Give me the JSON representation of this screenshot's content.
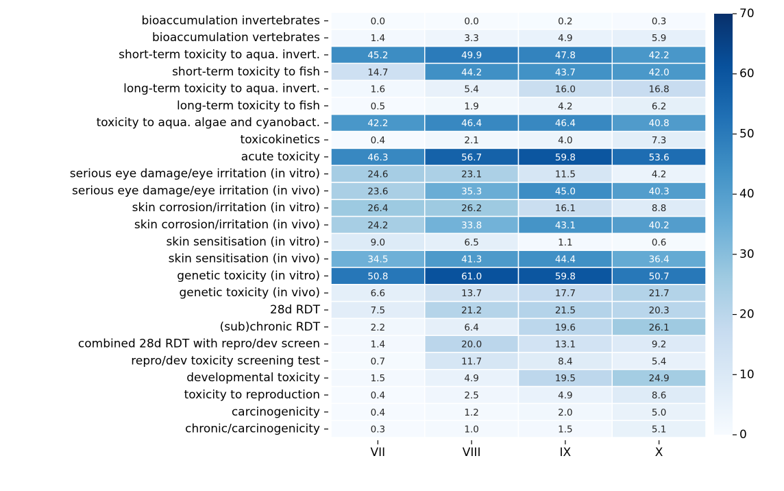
{
  "chart_data": {
    "type": "heatmap",
    "x_categories": [
      "VII",
      "VIII",
      "IX",
      "X"
    ],
    "y_categories": [
      "bioaccumulation invertebrates",
      "bioaccumulation vertebrates",
      "short-term toxicity to aqua. invert.",
      "short-term toxicity to fish",
      "long-term toxicity to aqua. invert.",
      "long-term toxicity to fish",
      "toxicity to aqua. algae and cyanobact.",
      "toxicokinetics",
      "acute toxicity",
      "serious eye damage/eye irritation (in vitro)",
      "serious eye damage/eye irritation (in vivo)",
      "skin corrosion/irritation (in vitro)",
      "skin corrosion/irritation (in vivo)",
      "skin sensitisation (in vitro)",
      "skin sensitisation (in vivo)",
      "genetic toxicity (in vitro)",
      "genetic toxicity (in vivo)",
      "28d RDT",
      "(sub)chronic RDT",
      "combined 28d RDT with repro/dev screen",
      "repro/dev toxicity screening test",
      "developmental toxicity",
      "toxicity to reproduction",
      "carcinogenicity",
      "chronic/carcinogenicity"
    ],
    "values": [
      [
        0,
        0,
        0.2,
        0.3
      ],
      [
        1.4,
        3.3,
        4.9,
        5.9
      ],
      [
        45.2,
        49.9,
        47.8,
        42.2
      ],
      [
        14.7,
        44.2,
        43.7,
        42
      ],
      [
        1.6,
        5.4,
        16,
        16.8
      ],
      [
        0.5,
        1.9,
        4.2,
        6.2
      ],
      [
        42.2,
        46.4,
        46.4,
        40.8
      ],
      [
        0.4,
        2.1,
        4,
        7.3
      ],
      [
        46.3,
        56.7,
        59.8,
        53.6
      ],
      [
        24.6,
        23.1,
        11.5,
        4.2
      ],
      [
        23.6,
        35.3,
        45,
        40.3
      ],
      [
        26.4,
        26.2,
        16.1,
        8.8
      ],
      [
        24.2,
        33.8,
        43.1,
        40.2
      ],
      [
        9,
        6.5,
        1.1,
        0.6
      ],
      [
        34.5,
        41.3,
        44.4,
        36.4
      ],
      [
        50.8,
        61,
        59.8,
        50.7
      ],
      [
        6.6,
        13.7,
        17.7,
        21.7
      ],
      [
        7.5,
        21.2,
        21.5,
        20.3
      ],
      [
        2.2,
        6.4,
        19.6,
        26.1
      ],
      [
        1.4,
        20,
        13.1,
        9.2
      ],
      [
        0.7,
        11.7,
        8.4,
        5.4
      ],
      [
        1.5,
        4.9,
        19.5,
        24.9
      ],
      [
        0.4,
        2.5,
        4.9,
        8.6
      ],
      [
        0.4,
        1.2,
        2,
        5
      ],
      [
        0.3,
        1,
        1.5,
        5.1
      ]
    ],
    "value_labels": [
      [
        "0.0",
        "0.0",
        "0.2",
        "0.3"
      ],
      [
        "1.4",
        "3.3",
        "4.9",
        "5.9"
      ],
      [
        "45.2",
        "49.9",
        "47.8",
        "42.2"
      ],
      [
        "14.7",
        "44.2",
        "43.7",
        "42.0"
      ],
      [
        "1.6",
        "5.4",
        "16.0",
        "16.8"
      ],
      [
        "0.5",
        "1.9",
        "4.2",
        "6.2"
      ],
      [
        "42.2",
        "46.4",
        "46.4",
        "40.8"
      ],
      [
        "0.4",
        "2.1",
        "4.0",
        "7.3"
      ],
      [
        "46.3",
        "56.7",
        "59.8",
        "53.6"
      ],
      [
        "24.6",
        "23.1",
        "11.5",
        "4.2"
      ],
      [
        "23.6",
        "35.3",
        "45.0",
        "40.3"
      ],
      [
        "26.4",
        "26.2",
        "16.1",
        "8.8"
      ],
      [
        "24.2",
        "33.8",
        "43.1",
        "40.2"
      ],
      [
        "9.0",
        "6.5",
        "1.1",
        "0.6"
      ],
      [
        "34.5",
        "41.3",
        "44.4",
        "36.4"
      ],
      [
        "50.8",
        "61.0",
        "59.8",
        "50.7"
      ],
      [
        "6.6",
        "13.7",
        "17.7",
        "21.7"
      ],
      [
        "7.5",
        "21.2",
        "21.5",
        "20.3"
      ],
      [
        "2.2",
        "6.4",
        "19.6",
        "26.1"
      ],
      [
        "1.4",
        "20.0",
        "13.1",
        "9.2"
      ],
      [
        "0.7",
        "11.7",
        "8.4",
        "5.4"
      ],
      [
        "1.5",
        "4.9",
        "19.5",
        "24.9"
      ],
      [
        "0.4",
        "2.5",
        "4.9",
        "8.6"
      ],
      [
        "0.4",
        "1.2",
        "2.0",
        "5.0"
      ],
      [
        "0.3",
        "1.0",
        "1.5",
        "5.1"
      ]
    ],
    "colorbar": {
      "lim": [
        0,
        70
      ],
      "ticks": [
        0,
        10,
        20,
        30,
        40,
        50,
        60,
        70
      ],
      "colormap": [
        "#f7fbff",
        "#deebf7",
        "#c6dbef",
        "#9ecae1",
        "#6baed6",
        "#4292c6",
        "#2171b5",
        "#08519c",
        "#08306b"
      ]
    }
  }
}
